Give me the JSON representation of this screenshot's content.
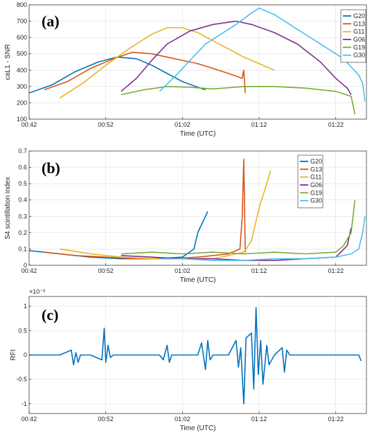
{
  "colors": {
    "G20": "#0072BD",
    "G13": "#D95319",
    "G11": "#EDB120",
    "G06": "#7E2F8E",
    "G19": "#77AC30",
    "G30": "#4DBEEE",
    "RFI": "#0072BD"
  },
  "chart_data": [
    {
      "type": "line",
      "panel_label": "(a)",
      "xlabel": "Time (UTC)",
      "ylabel": "caL1 - SNR",
      "xlim": [
        42,
        86
      ],
      "ylim": [
        100,
        800
      ],
      "xticks": [
        {
          "v": 42,
          "label": "00:42"
        },
        {
          "v": 52,
          "label": "00:52"
        },
        {
          "v": 62,
          "label": "01:02"
        },
        {
          "v": 72,
          "label": "01:12"
        },
        {
          "v": 82,
          "label": "01:22"
        }
      ],
      "yticks": [
        {
          "v": 100,
          "label": "100"
        },
        {
          "v": 200,
          "label": "200"
        },
        {
          "v": 300,
          "label": "300"
        },
        {
          "v": 400,
          "label": "400"
        },
        {
          "v": 500,
          "label": "500"
        },
        {
          "v": 600,
          "label": "600"
        },
        {
          "v": 700,
          "label": "700"
        },
        {
          "v": 800,
          "label": "800"
        }
      ],
      "grid": true,
      "legend": "top-right",
      "series": [
        {
          "name": "G20",
          "x": [
            42,
            45,
            48,
            51,
            53.5,
            56,
            58,
            60,
            62,
            64,
            65
          ],
          "y": [
            260,
            310,
            390,
            450,
            480,
            470,
            430,
            380,
            330,
            295,
            280
          ]
        },
        {
          "name": "G13",
          "x": [
            44,
            47,
            50,
            53,
            55.5,
            58,
            61,
            64,
            66,
            68,
            69.8,
            70,
            70.2
          ],
          "y": [
            280,
            330,
            410,
            470,
            510,
            500,
            470,
            440,
            410,
            380,
            350,
            400,
            260
          ]
        },
        {
          "name": "G11",
          "x": [
            46,
            49,
            52,
            55,
            58,
            60,
            62,
            64,
            66,
            68,
            70,
            72,
            74
          ],
          "y": [
            230,
            320,
            430,
            530,
            620,
            660,
            660,
            630,
            580,
            530,
            480,
            440,
            400
          ]
        },
        {
          "name": "G06",
          "x": [
            54,
            56,
            58,
            60,
            63,
            66,
            69,
            71,
            74,
            77,
            80,
            82,
            83.5,
            84
          ],
          "y": [
            270,
            350,
            460,
            560,
            640,
            680,
            700,
            680,
            630,
            560,
            450,
            350,
            290,
            250
          ]
        },
        {
          "name": "G19",
          "x": [
            54,
            57,
            60,
            63,
            66,
            70,
            74,
            78,
            82,
            84,
            84.5
          ],
          "y": [
            250,
            280,
            300,
            295,
            285,
            300,
            300,
            290,
            270,
            240,
            130
          ]
        },
        {
          "name": "G30",
          "x": [
            59,
            61,
            63,
            65,
            67,
            69,
            71,
            72,
            74,
            77,
            80,
            83,
            85,
            85.5,
            85.8
          ],
          "y": [
            270,
            360,
            460,
            560,
            620,
            680,
            750,
            780,
            740,
            650,
            560,
            470,
            370,
            320,
            210
          ]
        }
      ]
    },
    {
      "type": "line",
      "panel_label": "(b)",
      "xlabel": "Time (UTC)",
      "ylabel": "S4 scintillation index",
      "xlim": [
        42,
        86
      ],
      "ylim": [
        0,
        0.7
      ],
      "xticks": [
        {
          "v": 42,
          "label": "00:42"
        },
        {
          "v": 52,
          "label": "00:52"
        },
        {
          "v": 62,
          "label": "01:02"
        },
        {
          "v": 72,
          "label": "01:12"
        },
        {
          "v": 82,
          "label": "01:22"
        }
      ],
      "yticks": [
        {
          "v": 0,
          "label": "0"
        },
        {
          "v": 0.1,
          "label": "0.1"
        },
        {
          "v": 0.2,
          "label": "0.2"
        },
        {
          "v": 0.3,
          "label": "0.3"
        },
        {
          "v": 0.4,
          "label": "0.4"
        },
        {
          "v": 0.5,
          "label": "0.5"
        },
        {
          "v": 0.6,
          "label": "0.6"
        },
        {
          "v": 0.7,
          "label": "0.7"
        }
      ],
      "grid": true,
      "legend": "top-right",
      "series": [
        {
          "name": "G20",
          "x": [
            42,
            46,
            50,
            54,
            58,
            62,
            63.5,
            64,
            64.5,
            65,
            65.3
          ],
          "y": [
            0.09,
            0.07,
            0.05,
            0.04,
            0.04,
            0.05,
            0.1,
            0.2,
            0.25,
            0.3,
            0.33
          ]
        },
        {
          "name": "G13",
          "x": [
            44,
            48,
            52,
            56,
            60,
            64,
            66,
            68,
            69.5,
            69.8,
            70,
            70.2
          ],
          "y": [
            0.08,
            0.06,
            0.05,
            0.04,
            0.04,
            0.05,
            0.06,
            0.07,
            0.1,
            0.3,
            0.65,
            0.08
          ]
        },
        {
          "name": "G11",
          "x": [
            46,
            50,
            54,
            58,
            62,
            66,
            70,
            71,
            72,
            73,
            73.5
          ],
          "y": [
            0.1,
            0.07,
            0.05,
            0.04,
            0.04,
            0.04,
            0.08,
            0.15,
            0.35,
            0.5,
            0.58
          ]
        },
        {
          "name": "G06",
          "x": [
            54,
            58,
            62,
            66,
            70,
            74,
            78,
            82,
            83.5,
            84
          ],
          "y": [
            0.06,
            0.05,
            0.04,
            0.04,
            0.03,
            0.03,
            0.04,
            0.05,
            0.12,
            0.23
          ]
        },
        {
          "name": "G19",
          "x": [
            54,
            58,
            62,
            66,
            70,
            74,
            78,
            82,
            83,
            84,
            84.5
          ],
          "y": [
            0.07,
            0.08,
            0.07,
            0.08,
            0.07,
            0.08,
            0.07,
            0.08,
            0.12,
            0.2,
            0.4
          ]
        },
        {
          "name": "G30",
          "x": [
            59,
            62,
            66,
            70,
            74,
            78,
            82,
            84,
            85,
            85.5,
            85.8
          ],
          "y": [
            0.04,
            0.04,
            0.03,
            0.03,
            0.04,
            0.04,
            0.05,
            0.07,
            0.1,
            0.2,
            0.3
          ]
        }
      ]
    },
    {
      "type": "line",
      "panel_label": "(c)",
      "xlabel": "Time (UTC)",
      "ylabel": "RFI",
      "exponent_label": "×10⁻³",
      "xlim": [
        42,
        86
      ],
      "ylim": [
        -1.2,
        1.2
      ],
      "xticks": [
        {
          "v": 42,
          "label": "00:42"
        },
        {
          "v": 52,
          "label": "00:52"
        },
        {
          "v": 62,
          "label": "01:02"
        },
        {
          "v": 72,
          "label": "01:12"
        },
        {
          "v": 82,
          "label": "01:22"
        }
      ],
      "yticks": [
        {
          "v": -1,
          "label": "-1"
        },
        {
          "v": -0.5,
          "label": "-0.5"
        },
        {
          "v": 0,
          "label": "0"
        },
        {
          "v": 0.5,
          "label": "0.5"
        },
        {
          "v": 1,
          "label": "1"
        }
      ],
      "grid": true,
      "series": [
        {
          "name": "RFI",
          "x": [
            42,
            46,
            47.5,
            47.8,
            48.1,
            48.4,
            48.7,
            50,
            51.5,
            51.8,
            52,
            52.3,
            52.6,
            53,
            56,
            59,
            59.5,
            60,
            60.3,
            60.6,
            62,
            64,
            64.5,
            65,
            65.3,
            65.6,
            66,
            68,
            69,
            69.3,
            69.6,
            70,
            70.3,
            71,
            71.3,
            71.6,
            71.9,
            72.2,
            72.5,
            73,
            73.3,
            74,
            75,
            75.3,
            75.6,
            76,
            80,
            82,
            84,
            85,
            85.3
          ],
          "y": [
            0,
            0,
            0.1,
            -0.2,
            0.05,
            -0.15,
            0,
            0,
            -0.1,
            0.55,
            -0.15,
            0.2,
            -0.05,
            0,
            0,
            0,
            -0.1,
            0.2,
            -0.15,
            0,
            0,
            0,
            0.25,
            -0.3,
            0.3,
            -0.1,
            0,
            0,
            0.3,
            -0.25,
            0.15,
            -1.0,
            0.35,
            0.45,
            -0.7,
            0.97,
            -0.4,
            0.3,
            -0.6,
            0.2,
            -0.2,
            0,
            0.15,
            -0.35,
            0.1,
            0,
            0,
            0,
            0,
            0,
            -0.12
          ]
        }
      ]
    }
  ]
}
